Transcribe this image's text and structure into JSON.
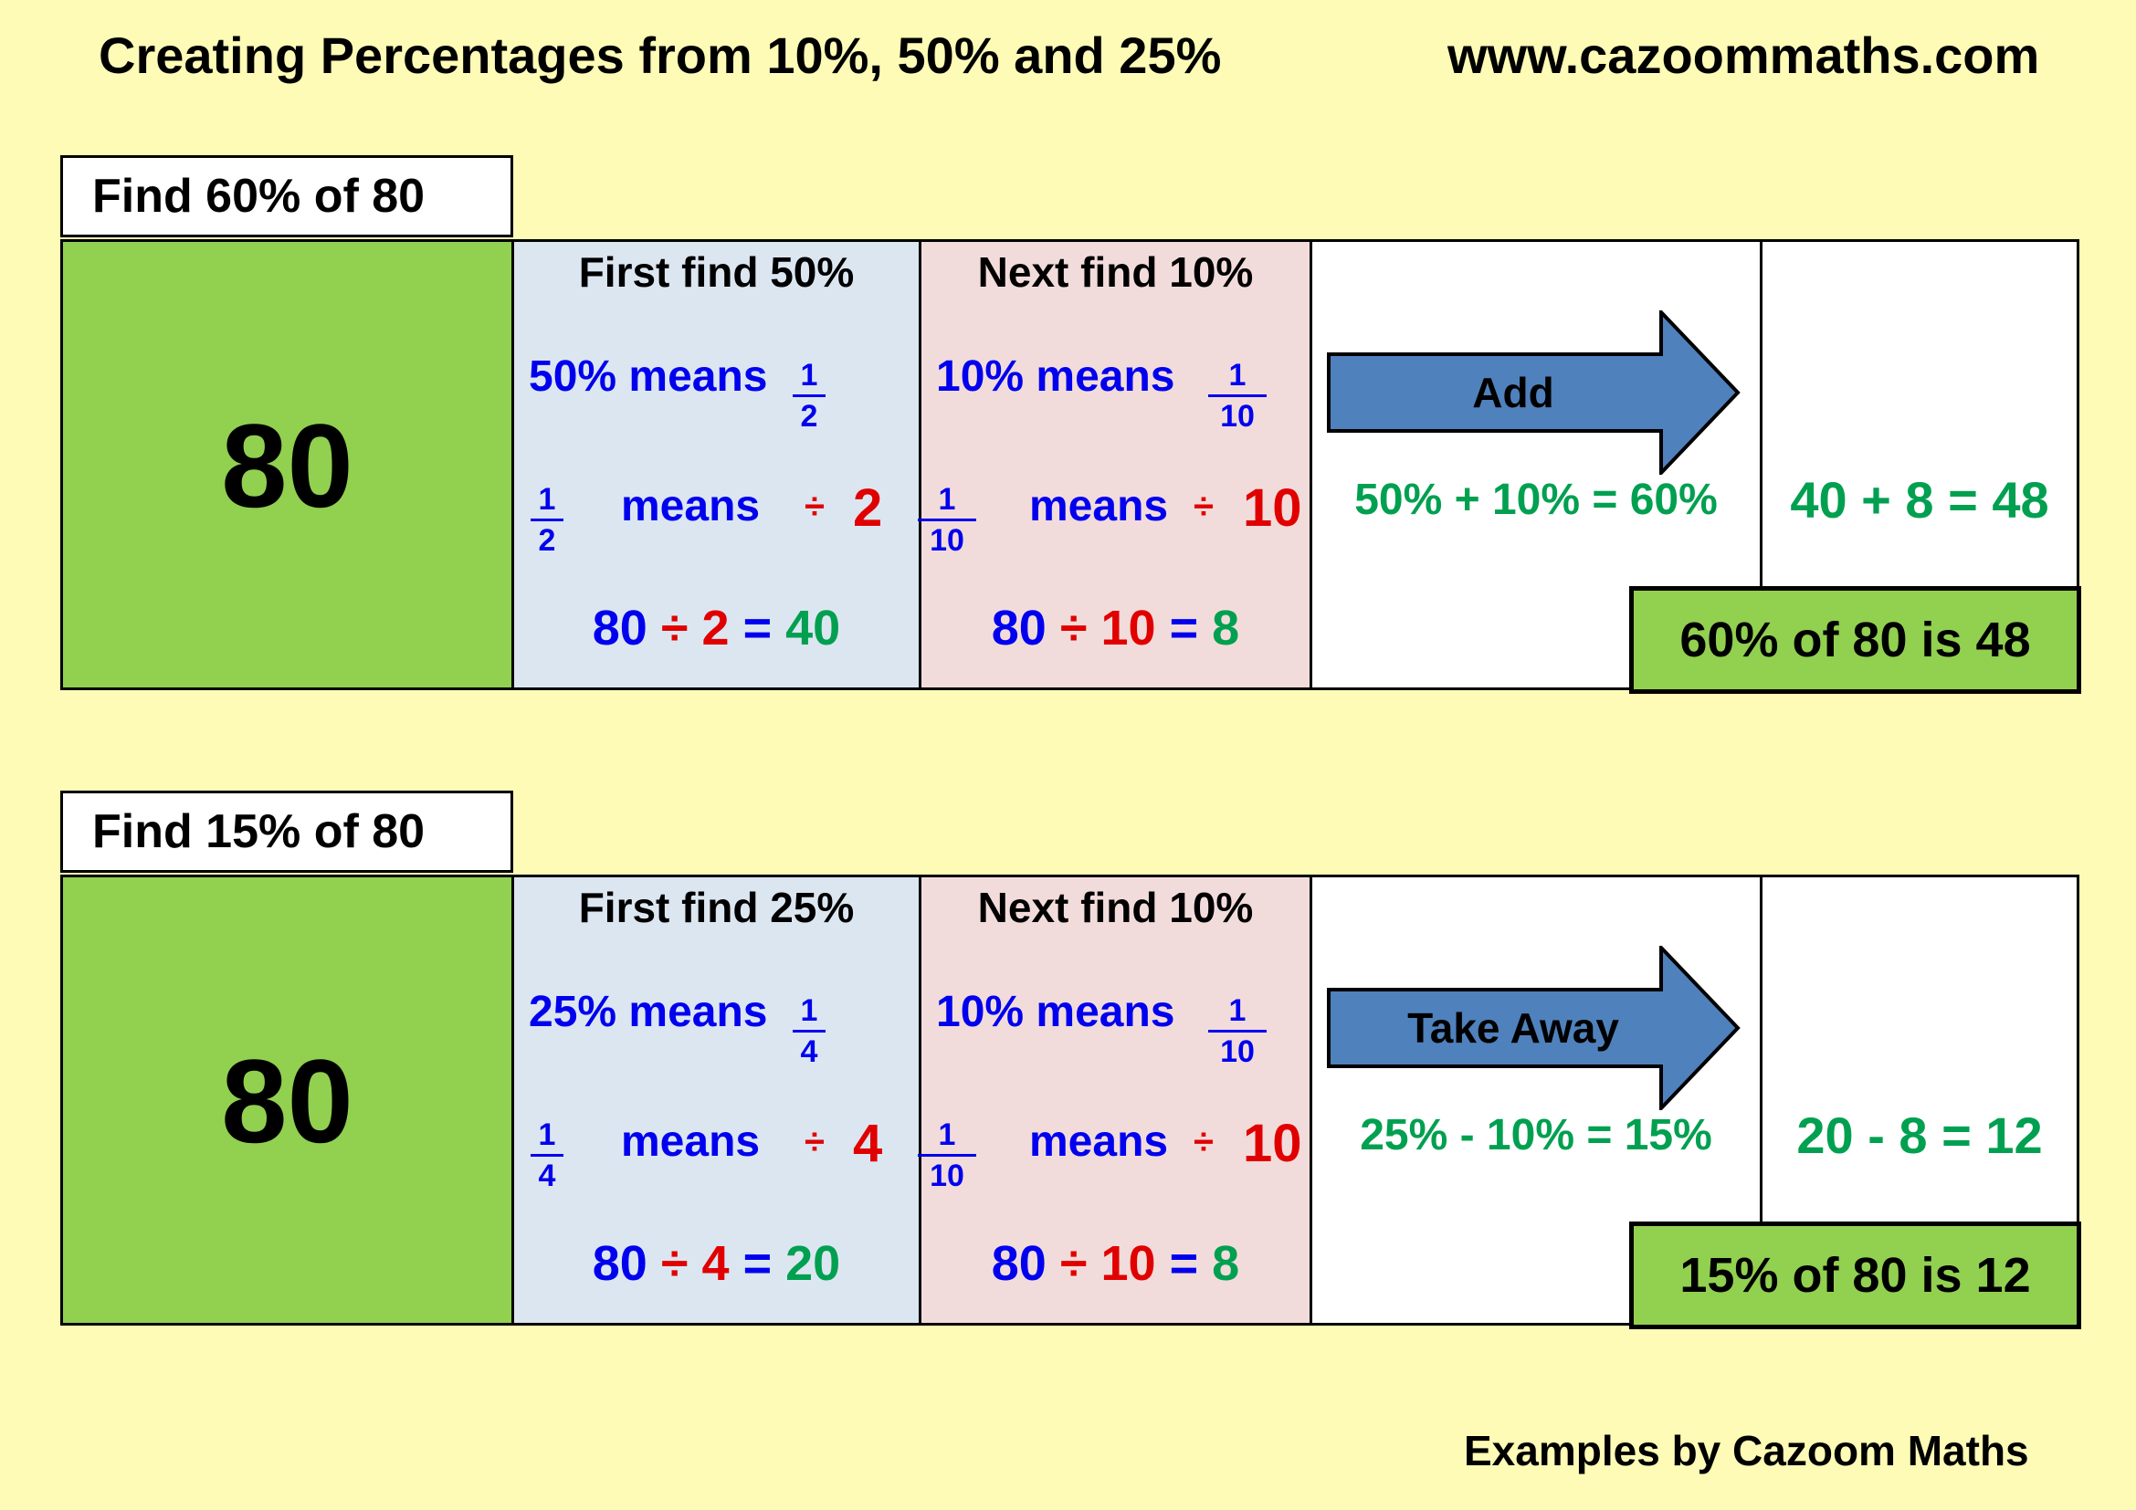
{
  "header": {
    "title": "Creating Percentages from 10%, 50% and 25%",
    "website": "www.cazoommaths.com"
  },
  "footer": {
    "credit": "Examples by Cazoom Maths"
  },
  "examples": [
    {
      "question": "Find 60% of 80",
      "number": "80",
      "step_a": {
        "heading": "First find 50%",
        "means_text": "50% means",
        "frac_num": "1",
        "frac_den": "2",
        "means_word": "means",
        "div_sign": "÷",
        "divisor": "2",
        "calc_left": "80",
        "calc_op": "÷",
        "calc_divisor": "2",
        "calc_eq": "=",
        "calc_result": "40"
      },
      "step_b": {
        "heading": "Next find 10%",
        "means_text": "10% means",
        "frac_num": "1",
        "frac_den": "10",
        "means_word": "means",
        "div_sign": "÷",
        "divisor": "10",
        "calc_left": "80",
        "calc_op": "÷",
        "calc_divisor": "10",
        "calc_eq": "=",
        "calc_result": "8"
      },
      "operation": {
        "label": "Add",
        "equation": "50% + 10% = 60%"
      },
      "result_equation": "40 + 8 = 48",
      "answer": "60% of 80 is 48"
    },
    {
      "question": "Find 15% of 80",
      "number": "80",
      "step_a": {
        "heading": "First find 25%",
        "means_text": "25% means",
        "frac_num": "1",
        "frac_den": "4",
        "means_word": "means",
        "div_sign": "÷",
        "divisor": "4",
        "calc_left": "80",
        "calc_op": "÷",
        "calc_divisor": "4",
        "calc_eq": "=",
        "calc_result": "20"
      },
      "step_b": {
        "heading": "Next find 10%",
        "means_text": "10% means",
        "frac_num": "1",
        "frac_den": "10",
        "means_word": "means",
        "div_sign": "÷",
        "divisor": "10",
        "calc_left": "80",
        "calc_op": "÷",
        "calc_divisor": "10",
        "calc_eq": "=",
        "calc_result": "8"
      },
      "operation": {
        "label": "Take Away",
        "equation": "25% - 10% = 15%"
      },
      "result_equation": "20 - 8 = 12",
      "answer": "15% of 80 is 12"
    }
  ],
  "colors": {
    "background": "#fdfbb6",
    "number_box": "#92d050",
    "step_a_bg": "#dce6f1",
    "step_b_bg": "#f2dcdb",
    "arrow": "#4f81bd",
    "blue_text": "#0000ee",
    "red_text": "#e00000",
    "green_text": "#00a050"
  }
}
